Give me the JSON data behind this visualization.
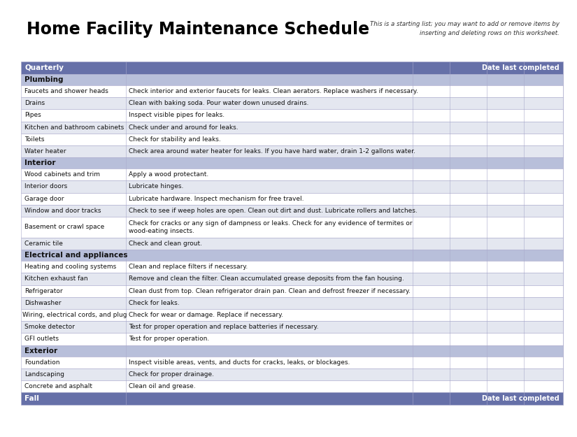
{
  "title": "Home Facility Maintenance Schedule",
  "subtitle": "This is a starting list; you may want to add or remove items by\ninserting and deleting rows on this worksheet.",
  "header_color": "#6670A8",
  "subheader_color": "#B8BFDA",
  "row_odd_color": "#FFFFFF",
  "row_even_color": "#E4E7F0",
  "header_text_color": "#FFFFFF",
  "subheader_text_color": "#000000",
  "bg_color": "#FFFFFF",
  "border_color": "#AAAACC",
  "sections": [
    {
      "type": "header",
      "label": "Quarterly",
      "date_label": "Date last completed"
    },
    {
      "type": "subheader",
      "label": "Plumbing"
    },
    {
      "type": "row",
      "item": "Faucets and shower heads",
      "desc": "Check interior and exterior faucets for leaks. Clean aerators. Replace washers if necessary.",
      "shade": false
    },
    {
      "type": "row",
      "item": "Drains",
      "desc": "Clean with baking soda. Pour water down unused drains.",
      "shade": true
    },
    {
      "type": "row",
      "item": "Pipes",
      "desc": "Inspect visible pipes for leaks.",
      "shade": false
    },
    {
      "type": "row",
      "item": "Kitchen and bathroom cabinets",
      "desc": "Check under and around for leaks.",
      "shade": true
    },
    {
      "type": "row",
      "item": "Toilets",
      "desc": "Check for stability and leaks.",
      "shade": false
    },
    {
      "type": "row",
      "item": "Water heater",
      "desc": "Check area around water heater for leaks. If you have hard water, drain 1-2 gallons water.",
      "shade": true
    },
    {
      "type": "subheader",
      "label": "Interior"
    },
    {
      "type": "row",
      "item": "Wood cabinets and trim",
      "desc": "Apply a wood protectant.",
      "shade": false
    },
    {
      "type": "row",
      "item": "Interior doors",
      "desc": "Lubricate hinges.",
      "shade": true
    },
    {
      "type": "row",
      "item": "Garage door",
      "desc": "Lubricate hardware. Inspect mechanism for free travel.",
      "shade": false
    },
    {
      "type": "row",
      "item": "Window and door tracks",
      "desc": "Check to see if weep holes are open. Clean out dirt and dust. Lubricate rollers and latches.",
      "shade": true
    },
    {
      "type": "row",
      "item": "Basement or crawl space",
      "desc": "Check for cracks or any sign of dampness or leaks. Check for any evidence of termites or\nwood-eating insects.",
      "shade": false,
      "tall": true
    },
    {
      "type": "row",
      "item": "Ceramic tile",
      "desc": "Check and clean grout.",
      "shade": true
    },
    {
      "type": "subheader",
      "label": "Electrical and appliances"
    },
    {
      "type": "row",
      "item": "Heating and cooling systems",
      "desc": "Clean and replace filters if necessary.",
      "shade": false
    },
    {
      "type": "row",
      "item": "Kitchen exhaust fan",
      "desc": "Remove and clean the filter. Clean accumulated grease deposits from the fan housing.",
      "shade": true
    },
    {
      "type": "row",
      "item": "Refrigerator",
      "desc": "Clean dust from top. Clean refrigerator drain pan. Clean and defrost freezer if necessary.",
      "shade": false
    },
    {
      "type": "row",
      "item": "Dishwasher",
      "desc": "Check for leaks.",
      "shade": true
    },
    {
      "type": "row",
      "item": "Wiring, electrical cords, and plug",
      "desc": "Check for wear or damage. Replace if necessary.",
      "shade": false,
      "no_indent": true
    },
    {
      "type": "row",
      "item": "Smoke detector",
      "desc": "Test for proper operation and replace batteries if necessary.",
      "shade": true
    },
    {
      "type": "row",
      "item": "GFI outlets",
      "desc": "Test for proper operation.",
      "shade": false
    },
    {
      "type": "subheader",
      "label": "Exterior"
    },
    {
      "type": "row",
      "item": "Foundation",
      "desc": "Inspect visible areas, vents, and ducts for cracks, leaks, or blockages.",
      "shade": false
    },
    {
      "type": "row",
      "item": "Landscaping",
      "desc": "Check for proper drainage.",
      "shade": true
    },
    {
      "type": "row",
      "item": "Concrete and asphalt",
      "desc": "Clean oil and grease.",
      "shade": false
    },
    {
      "type": "footer_header",
      "label": "Fall",
      "date_label": "Date last completed"
    }
  ]
}
